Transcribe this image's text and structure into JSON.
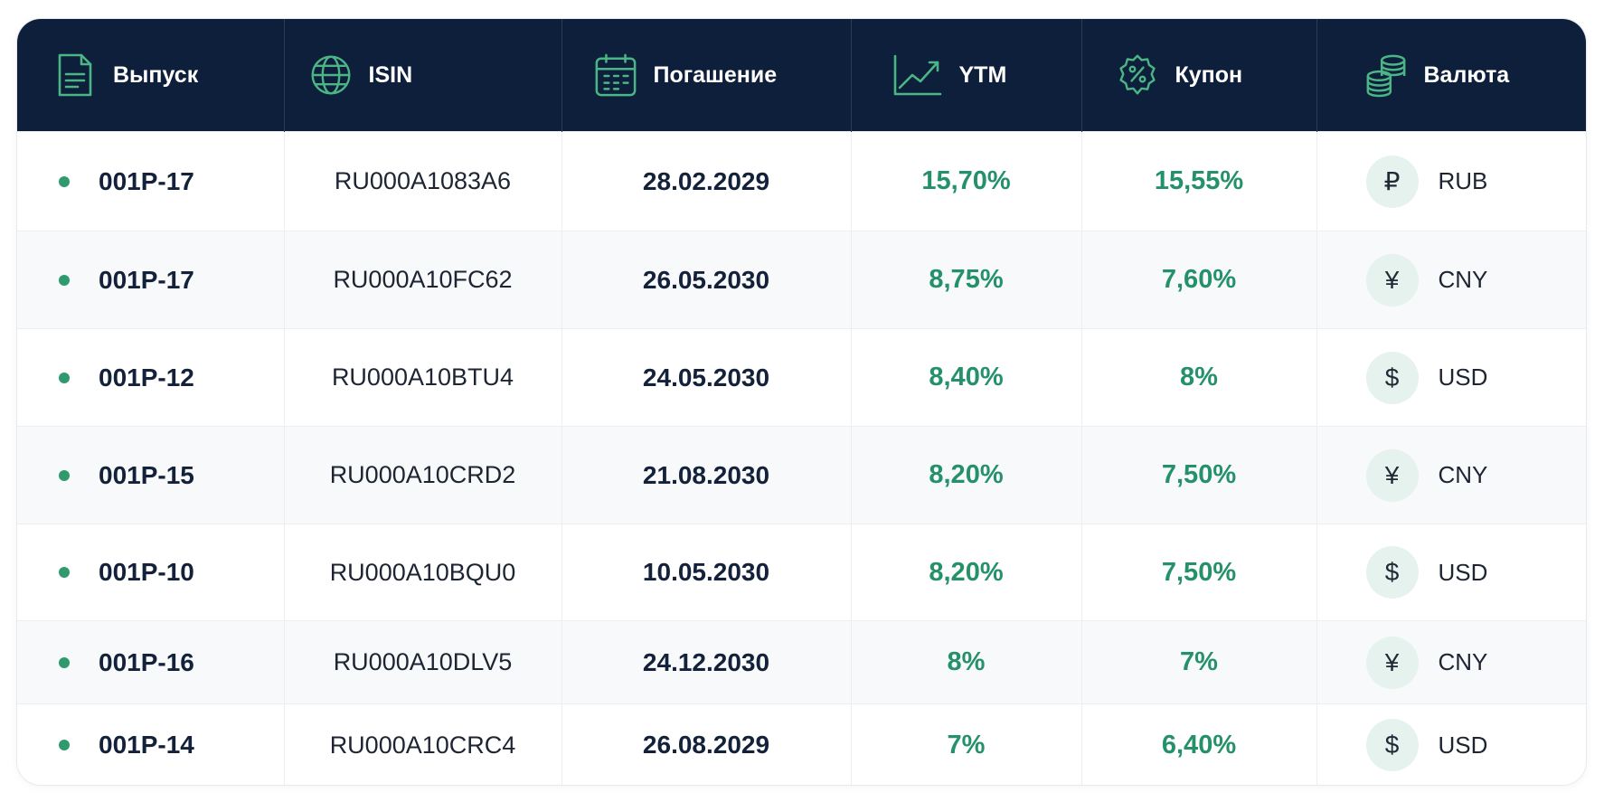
{
  "colors": {
    "header_bg": "#0d1f3a",
    "accent_green": "#25916a",
    "icon_green": "#4cb586",
    "row_alt_bg": "#f8f9fa",
    "coin_bg": "#e6f2ee"
  },
  "header": [
    {
      "label": "Выпуск",
      "icon": "document-icon"
    },
    {
      "label": "ISIN",
      "icon": "globe-icon"
    },
    {
      "label": "Погашение",
      "icon": "calendar-icon"
    },
    {
      "label": "YTM",
      "icon": "trend-up-icon"
    },
    {
      "label": "Купон",
      "icon": "percent-badge-icon"
    },
    {
      "label": "Валюта",
      "icon": "coins-icon"
    }
  ],
  "rows": [
    {
      "issue": "001P-17",
      "isin": "RU000A1083A6",
      "maturity": "28.02.2029",
      "ytm": "15,70%",
      "coupon": "15,55%",
      "currency_symbol": "₽",
      "currency": "RUB"
    },
    {
      "issue": "001P-17",
      "isin": "RU000A10FC62",
      "maturity": "26.05.2030",
      "ytm": "8,75%",
      "coupon": "7,60%",
      "currency_symbol": "¥",
      "currency": "CNY"
    },
    {
      "issue": "001P-12",
      "isin": "RU000A10BTU4",
      "maturity": "24.05.2030",
      "ytm": "8,40%",
      "coupon": "8%",
      "currency_symbol": "$",
      "currency": "USD"
    },
    {
      "issue": "001P-15",
      "isin": "RU000A10CRD2",
      "maturity": "21.08.2030",
      "ytm": "8,20%",
      "coupon": "7,50%",
      "currency_symbol": "¥",
      "currency": "CNY"
    },
    {
      "issue": "001P-10",
      "isin": "RU000A10BQU0",
      "maturity": "10.05.2030",
      "ytm": "8,20%",
      "coupon": "7,50%",
      "currency_symbol": "$",
      "currency": "USD"
    },
    {
      "issue": "001P-16",
      "isin": "RU000A10DLV5",
      "maturity": "24.12.2030",
      "ytm": "8%",
      "coupon": "7%",
      "currency_symbol": "¥",
      "currency": "CNY"
    },
    {
      "issue": "001P-14",
      "isin": "RU000A10CRC4",
      "maturity": "26.08.2029",
      "ytm": "7%",
      "coupon": "6,40%",
      "currency_symbol": "$",
      "currency": "USD"
    }
  ]
}
